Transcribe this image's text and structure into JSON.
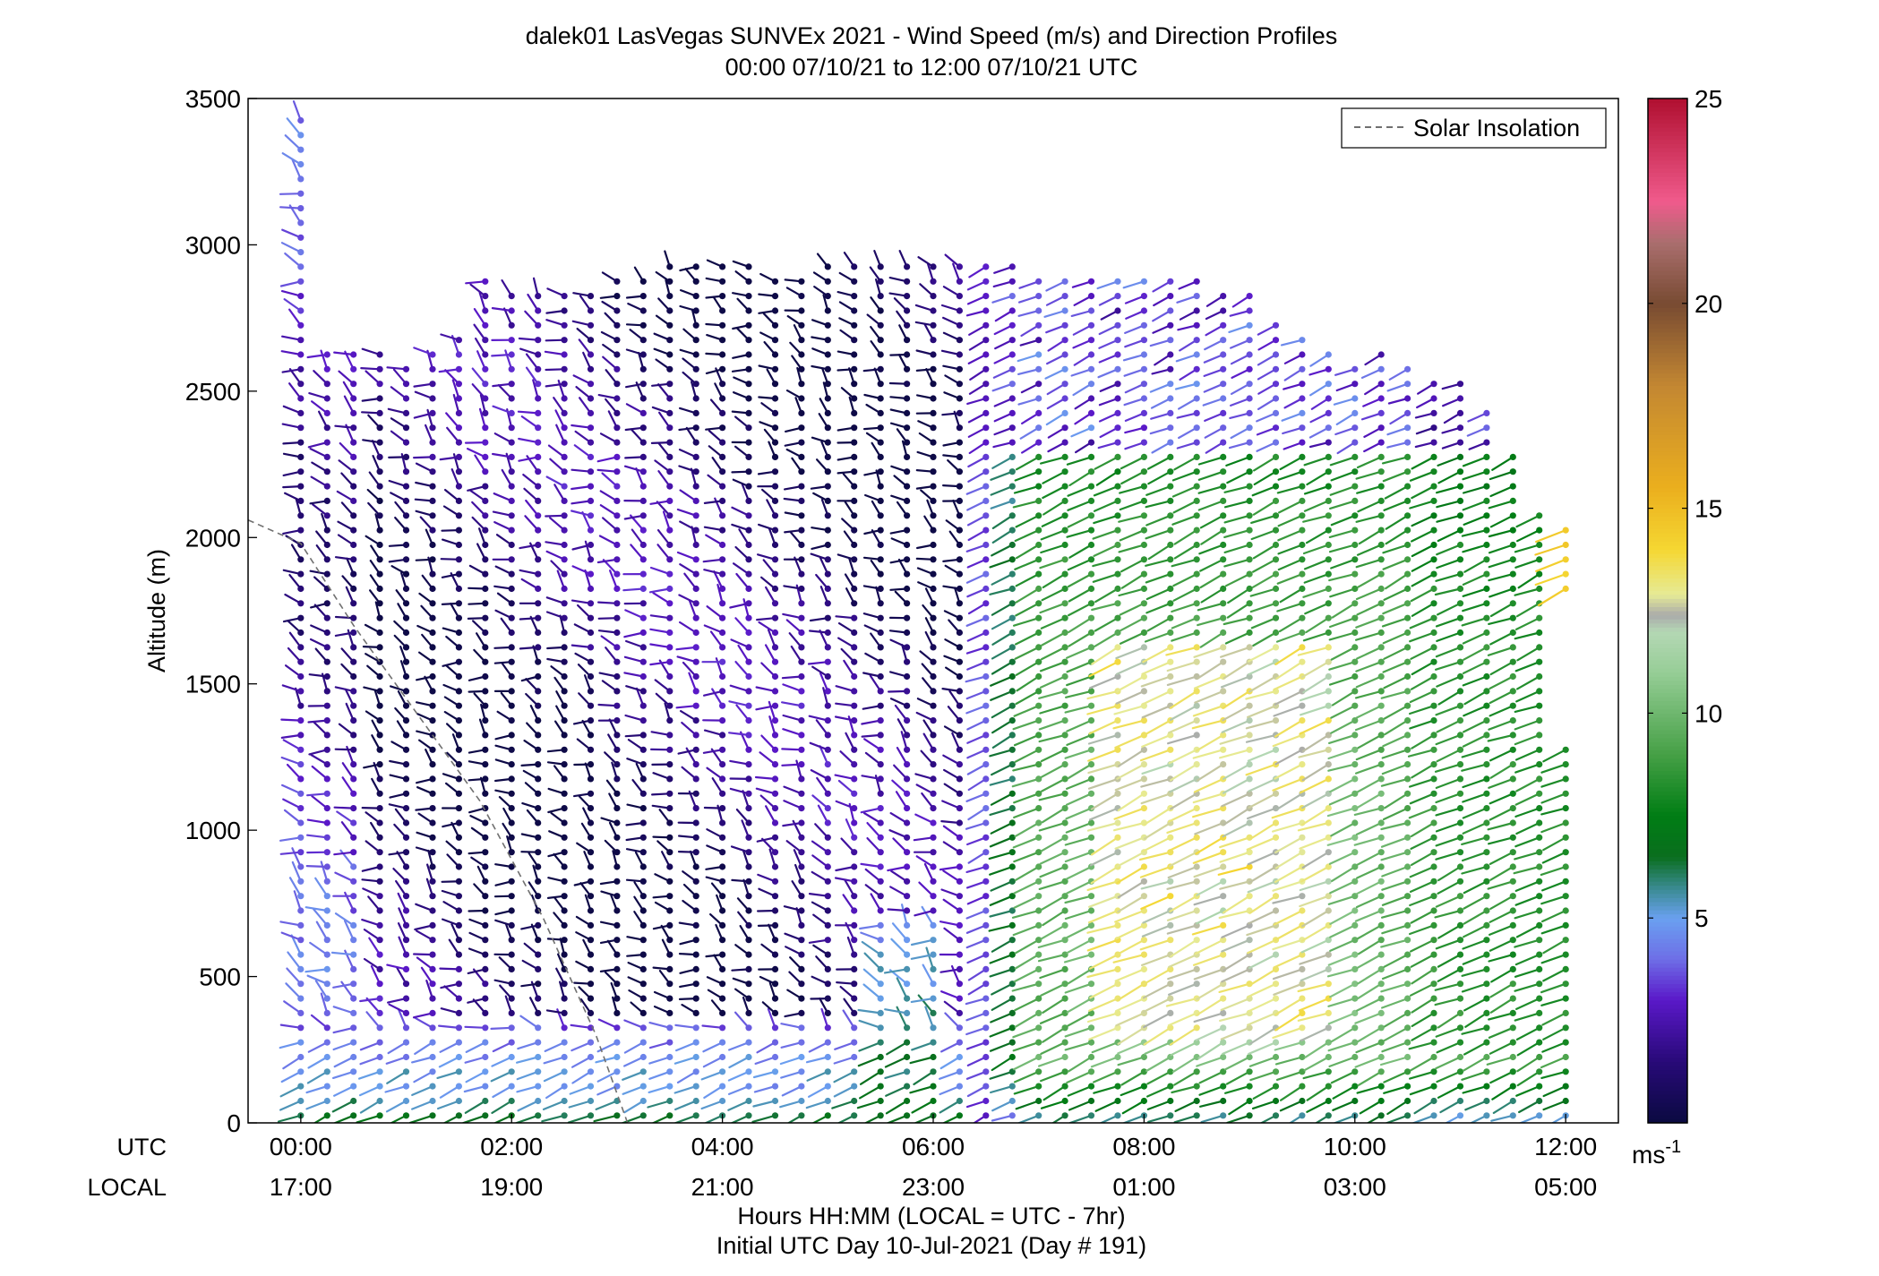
{
  "title": {
    "line1": "dalek01 LasVegas SUNVEx 2021 - Wind Speed (m/s) and Direction Profiles",
    "line2": "00:00 07/10/21 to 12:00 07/10/21  UTC"
  },
  "axes": {
    "ylabel": "Altitude (m)",
    "xlabel_line1": "Hours HH:MM  (LOCAL = UTC - 7hr)",
    "xlabel_line2": "Initial UTC Day 10-Jul-2021 (Day # 191)",
    "row_label_utc": "UTC",
    "row_label_local": "LOCAL"
  },
  "legend": {
    "label": "Solar Insolation"
  },
  "colorbar": {
    "unit_main": "ms",
    "unit_sup": "-1",
    "tick_labels": [
      "5",
      "10",
      "15",
      "20",
      "25"
    ]
  },
  "chart_data": {
    "type": "scatter",
    "subtype": "wind barb / stick profile time-height plot",
    "xlim_hours_utc": [
      -0.5,
      12.5
    ],
    "ylim": [
      0,
      3500
    ],
    "x_tick_utc": [
      "00:00",
      "02:00",
      "04:00",
      "06:00",
      "08:00",
      "10:00",
      "12:00"
    ],
    "x_tick_local": [
      "17:00",
      "19:00",
      "21:00",
      "23:00",
      "01:00",
      "03:00",
      "05:00"
    ],
    "x_tick_hours": [
      0,
      2,
      4,
      6,
      8,
      10,
      12
    ],
    "y_ticks": [
      0,
      500,
      1000,
      1500,
      2000,
      2500,
      3000,
      3500
    ],
    "y_tick_labels": [
      "0",
      "500",
      "1000",
      "1500",
      "2000",
      "2500",
      "3000",
      "3500"
    ],
    "colorbar_range": [
      0,
      25
    ],
    "colorbar_ticks": [
      5,
      10,
      15,
      20,
      25
    ],
    "profile_interval_minutes": 15,
    "vertical_spacing_m": 50,
    "grid": false,
    "legend_position": "top-right",
    "colors": {
      "calm": "#0a0a40",
      "light": "#5a18c8",
      "moderate_light": "#6aa0f0",
      "moderate": "#2a8a2a",
      "fresh": "#8ccc8c",
      "strong": "#f0d020",
      "very_strong": "#e8a020",
      "peak": "#b01030",
      "insolation_line": "#707070"
    },
    "profiles_summary": [
      {
        "period_utc": "00:00-06:30",
        "altitude_m": "0-300",
        "speed_ms": "4-8",
        "note": "near-surface green/light blue sticks"
      },
      {
        "period_utc": "00:00-06:30",
        "altitude_m": "300-2900",
        "speed_ms": "0-4",
        "note": "dark navy to purple sticks"
      },
      {
        "period_utc": "06:30-12:00",
        "altitude_m": "0-2300",
        "speed_ms": "7-13",
        "note": "green sticks with yellow core"
      },
      {
        "period_utc": "07:45-09:45",
        "altitude_m": "300-1600",
        "speed_ms": "12-14",
        "note": "yellow core maximum"
      },
      {
        "period_utc": "06:30-12:00",
        "altitude_m": "2300-3000",
        "speed_ms": "1-5",
        "note": "purple and light blue sticks"
      }
    ]
  }
}
